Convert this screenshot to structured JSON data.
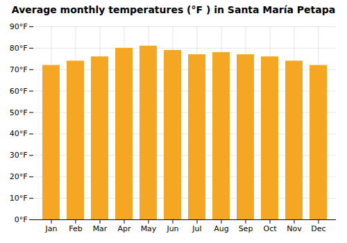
{
  "chart_data": {
    "type": "bar",
    "title": "Average monthly temperatures (°F ) in Santa María Petapa",
    "categories": [
      "Jan",
      "Feb",
      "Mar",
      "Apr",
      "May",
      "Jun",
      "Jul",
      "Aug",
      "Sep",
      "Oct",
      "Nov",
      "Dec"
    ],
    "values": [
      72,
      74,
      76,
      80,
      81,
      79,
      77,
      78,
      77,
      76,
      74,
      72
    ],
    "color": "#F5A623",
    "ylim": [
      0,
      90
    ],
    "yticks": [
      {
        "value": 0,
        "label": "0°F"
      },
      {
        "value": 10,
        "label": "10°F"
      },
      {
        "value": 20,
        "label": "20°F"
      },
      {
        "value": 30,
        "label": "30°F"
      },
      {
        "value": 40,
        "label": "40°F"
      },
      {
        "value": 50,
        "label": "50°F"
      },
      {
        "value": 60,
        "label": "60°F"
      },
      {
        "value": 70,
        "label": "70°F"
      },
      {
        "value": 80,
        "label": "80°F"
      },
      {
        "value": 90,
        "label": "90°F"
      }
    ],
    "grid": true
  }
}
